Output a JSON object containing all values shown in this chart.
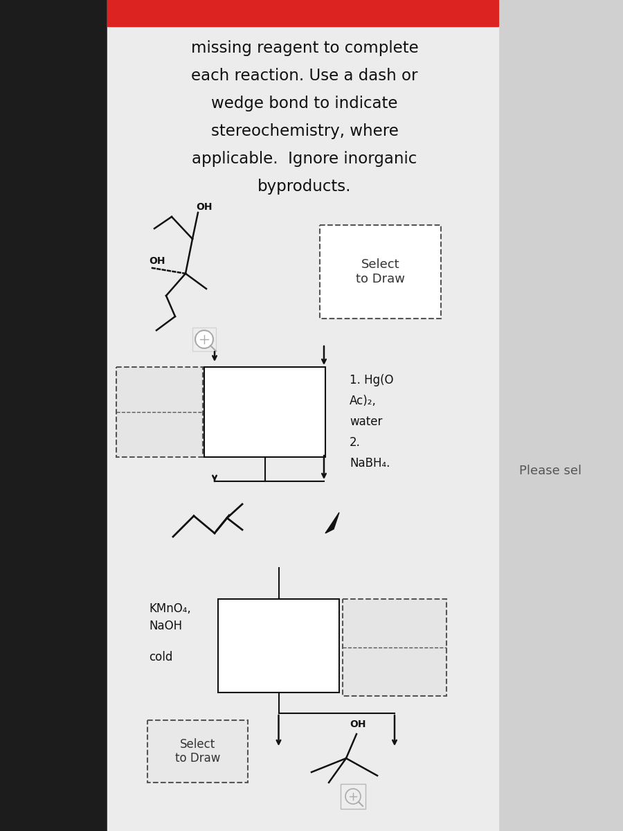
{
  "bg_left_dark": "#1c1c1c",
  "bg_main": "#e8e8e8",
  "bg_right": "#d0d0d0",
  "red_bar": "#dd2222",
  "title_lines": [
    "missing reagent to complete",
    "each reaction. Use a dash or",
    "wedge bond to indicate",
    "stereochemistry, where",
    "applicable.  Ignore inorganic",
    "byproducts."
  ],
  "reagent1": [
    "1. Hg(O",
    "Ac)₂,",
    "water",
    "2.",
    "NaBH₄."
  ],
  "reagent2_line1": "KMnO₄,",
  "reagent2_line2": "NaOH",
  "reagent2_line3": "cold",
  "select_draw": "Select\nto Draw",
  "please_sel": "Please sel",
  "dash_color": "#555555",
  "line_color": "#111111",
  "text_color": "#222222"
}
